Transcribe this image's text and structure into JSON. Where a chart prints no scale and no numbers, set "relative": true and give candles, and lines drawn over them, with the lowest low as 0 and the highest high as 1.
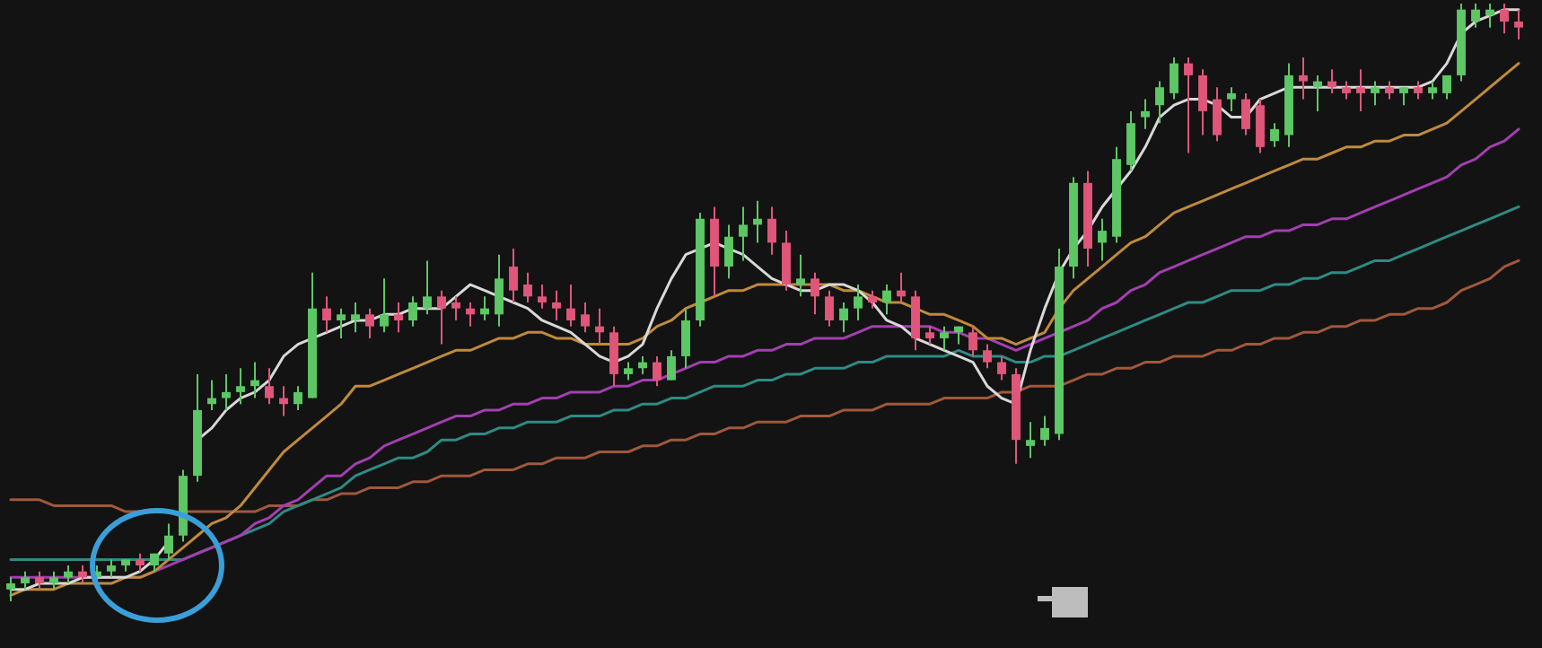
{
  "chart_data": {
    "type": "candlestick",
    "relative": true,
    "tick_labels": false,
    "legend": false,
    "categories": [
      null,
      null,
      null,
      null,
      null,
      null,
      null,
      null,
      null,
      null,
      null,
      null,
      null,
      null,
      null,
      null,
      null,
      null,
      null,
      null,
      null,
      null,
      null,
      null,
      null,
      null,
      null,
      null,
      null,
      null,
      null,
      null,
      null,
      null,
      null,
      null,
      null,
      null,
      null,
      null,
      null,
      null,
      null,
      null,
      null,
      null,
      null,
      null,
      null,
      null,
      null,
      null,
      null,
      null,
      null,
      null,
      null,
      null,
      null,
      null,
      null,
      null,
      null,
      null,
      null,
      null,
      null,
      null,
      null,
      null,
      null,
      null,
      null,
      null,
      null,
      null,
      null,
      null,
      null,
      null,
      null,
      null,
      null,
      null,
      null,
      null,
      null,
      null,
      null,
      null,
      null,
      null,
      null,
      null,
      null,
      null,
      null,
      null,
      null,
      null,
      null,
      null,
      null,
      null,
      null,
      null
    ],
    "ohlc": [
      [
        0.02,
        0.04,
        0.0,
        0.03
      ],
      [
        0.03,
        0.05,
        0.02,
        0.04
      ],
      [
        0.04,
        0.05,
        0.02,
        0.03
      ],
      [
        0.03,
        0.05,
        0.02,
        0.04
      ],
      [
        0.04,
        0.06,
        0.03,
        0.05
      ],
      [
        0.05,
        0.06,
        0.03,
        0.04
      ],
      [
        0.04,
        0.06,
        0.03,
        0.05
      ],
      [
        0.05,
        0.07,
        0.04,
        0.06
      ],
      [
        0.06,
        0.07,
        0.05,
        0.07
      ],
      [
        0.07,
        0.08,
        0.05,
        0.06
      ],
      [
        0.06,
        0.08,
        0.05,
        0.08
      ],
      [
        0.08,
        0.13,
        0.07,
        0.11
      ],
      [
        0.11,
        0.22,
        0.1,
        0.21
      ],
      [
        0.21,
        0.38,
        0.2,
        0.32
      ],
      [
        0.33,
        0.37,
        0.32,
        0.34
      ],
      [
        0.34,
        0.38,
        0.32,
        0.35
      ],
      [
        0.35,
        0.39,
        0.33,
        0.36
      ],
      [
        0.36,
        0.4,
        0.34,
        0.37
      ],
      [
        0.36,
        0.39,
        0.33,
        0.34
      ],
      [
        0.34,
        0.36,
        0.31,
        0.33
      ],
      [
        0.33,
        0.36,
        0.32,
        0.35
      ],
      [
        0.34,
        0.55,
        0.34,
        0.49
      ],
      [
        0.49,
        0.51,
        0.45,
        0.47
      ],
      [
        0.47,
        0.49,
        0.44,
        0.48
      ],
      [
        0.47,
        0.5,
        0.45,
        0.48
      ],
      [
        0.48,
        0.49,
        0.44,
        0.46
      ],
      [
        0.46,
        0.54,
        0.45,
        0.48
      ],
      [
        0.48,
        0.5,
        0.45,
        0.47
      ],
      [
        0.47,
        0.51,
        0.46,
        0.5
      ],
      [
        0.49,
        0.57,
        0.48,
        0.51
      ],
      [
        0.51,
        0.52,
        0.43,
        0.49
      ],
      [
        0.5,
        0.51,
        0.47,
        0.49
      ],
      [
        0.49,
        0.5,
        0.46,
        0.48
      ],
      [
        0.48,
        0.51,
        0.47,
        0.49
      ],
      [
        0.48,
        0.58,
        0.46,
        0.54
      ],
      [
        0.56,
        0.59,
        0.5,
        0.52
      ],
      [
        0.53,
        0.55,
        0.5,
        0.51
      ],
      [
        0.51,
        0.53,
        0.49,
        0.5
      ],
      [
        0.5,
        0.52,
        0.47,
        0.49
      ],
      [
        0.49,
        0.53,
        0.46,
        0.47
      ],
      [
        0.48,
        0.5,
        0.45,
        0.46
      ],
      [
        0.46,
        0.49,
        0.43,
        0.45
      ],
      [
        0.45,
        0.46,
        0.36,
        0.38
      ],
      [
        0.38,
        0.4,
        0.37,
        0.39
      ],
      [
        0.39,
        0.41,
        0.38,
        0.4
      ],
      [
        0.4,
        0.41,
        0.36,
        0.37
      ],
      [
        0.37,
        0.42,
        0.37,
        0.41
      ],
      [
        0.41,
        0.49,
        0.39,
        0.47
      ],
      [
        0.47,
        0.65,
        0.46,
        0.64
      ],
      [
        0.64,
        0.66,
        0.51,
        0.56
      ],
      [
        0.56,
        0.63,
        0.54,
        0.61
      ],
      [
        0.61,
        0.66,
        0.57,
        0.63
      ],
      [
        0.63,
        0.67,
        0.6,
        0.64
      ],
      [
        0.64,
        0.66,
        0.58,
        0.6
      ],
      [
        0.6,
        0.62,
        0.52,
        0.53
      ],
      [
        0.53,
        0.58,
        0.51,
        0.54
      ],
      [
        0.54,
        0.55,
        0.48,
        0.51
      ],
      [
        0.51,
        0.52,
        0.46,
        0.47
      ],
      [
        0.47,
        0.5,
        0.45,
        0.49
      ],
      [
        0.49,
        0.53,
        0.47,
        0.51
      ],
      [
        0.51,
        0.52,
        0.49,
        0.5
      ],
      [
        0.5,
        0.53,
        0.48,
        0.52
      ],
      [
        0.52,
        0.55,
        0.5,
        0.51
      ],
      [
        0.51,
        0.52,
        0.42,
        0.44
      ],
      [
        0.45,
        0.46,
        0.43,
        0.44
      ],
      [
        0.44,
        0.46,
        0.42,
        0.45
      ],
      [
        0.45,
        0.46,
        0.43,
        0.46
      ],
      [
        0.45,
        0.46,
        0.41,
        0.42
      ],
      [
        0.42,
        0.43,
        0.39,
        0.4
      ],
      [
        0.4,
        0.41,
        0.37,
        0.38
      ],
      [
        0.38,
        0.39,
        0.23,
        0.27
      ],
      [
        0.26,
        0.3,
        0.24,
        0.27
      ],
      [
        0.27,
        0.31,
        0.26,
        0.29
      ],
      [
        0.28,
        0.59,
        0.27,
        0.56
      ],
      [
        0.56,
        0.71,
        0.54,
        0.7
      ],
      [
        0.7,
        0.72,
        0.56,
        0.59
      ],
      [
        0.6,
        0.64,
        0.57,
        0.62
      ],
      [
        0.61,
        0.76,
        0.6,
        0.74
      ],
      [
        0.73,
        0.82,
        0.72,
        0.8
      ],
      [
        0.81,
        0.84,
        0.79,
        0.82
      ],
      [
        0.83,
        0.87,
        0.8,
        0.86
      ],
      [
        0.85,
        0.91,
        0.84,
        0.9
      ],
      [
        0.9,
        0.91,
        0.75,
        0.88
      ],
      [
        0.88,
        0.89,
        0.78,
        0.82
      ],
      [
        0.84,
        0.86,
        0.77,
        0.78
      ],
      [
        0.84,
        0.86,
        0.82,
        0.85
      ],
      [
        0.84,
        0.85,
        0.78,
        0.79
      ],
      [
        0.83,
        0.84,
        0.75,
        0.76
      ],
      [
        0.77,
        0.8,
        0.76,
        0.79
      ],
      [
        0.78,
        0.9,
        0.76,
        0.88
      ],
      [
        0.88,
        0.91,
        0.84,
        0.87
      ],
      [
        0.86,
        0.88,
        0.82,
        0.87
      ],
      [
        0.87,
        0.89,
        0.85,
        0.86
      ],
      [
        0.86,
        0.87,
        0.84,
        0.85
      ],
      [
        0.86,
        0.89,
        0.82,
        0.85
      ],
      [
        0.85,
        0.87,
        0.83,
        0.86
      ],
      [
        0.86,
        0.87,
        0.84,
        0.85
      ],
      [
        0.85,
        0.86,
        0.83,
        0.86
      ],
      [
        0.86,
        0.87,
        0.84,
        0.85
      ],
      [
        0.85,
        0.87,
        0.84,
        0.86
      ],
      [
        0.85,
        0.88,
        0.84,
        0.88
      ],
      [
        0.88,
        1.0,
        0.87,
        0.99
      ],
      [
        0.97,
        1.0,
        0.96,
        0.99
      ],
      [
        0.98,
        1.0,
        0.96,
        0.99
      ],
      [
        0.99,
        1.0,
        0.95,
        0.97
      ],
      [
        0.97,
        0.99,
        0.94,
        0.96
      ]
    ],
    "series": [
      {
        "type": "line",
        "color": "#d8d8d8",
        "values": [
          0.02,
          0.02,
          0.03,
          0.03,
          0.03,
          0.04,
          0.04,
          0.04,
          0.04,
          0.05,
          0.07,
          0.1,
          null,
          0.27,
          0.29,
          0.32,
          0.34,
          0.35,
          0.37,
          0.41,
          0.43,
          0.44,
          0.45,
          0.46,
          0.47,
          0.47,
          0.48,
          0.48,
          0.49,
          0.49,
          0.49,
          0.51,
          0.53,
          0.52,
          0.51,
          0.5,
          0.49,
          0.47,
          0.46,
          0.45,
          0.43,
          0.41,
          0.4,
          0.41,
          0.43,
          0.49,
          0.54,
          0.58,
          0.59,
          0.6,
          0.59,
          0.58,
          0.56,
          0.54,
          0.53,
          0.52,
          0.52,
          0.53,
          0.53,
          0.52,
          0.5,
          0.47,
          0.46,
          0.44,
          0.43,
          0.42,
          0.41,
          0.4,
          0.36,
          0.34,
          0.33,
          0.42,
          0.49,
          0.55,
          0.59,
          0.62,
          0.66,
          0.69,
          0.72,
          0.76,
          0.81,
          0.83,
          0.84,
          0.84,
          0.83,
          0.81,
          0.81,
          0.84,
          0.85,
          0.86,
          0.86,
          0.86,
          0.86,
          0.86,
          0.86,
          0.86,
          0.86,
          0.86,
          0.86,
          0.87,
          0.9,
          0.95,
          0.97,
          0.98,
          0.99,
          0.99
        ]
      },
      {
        "type": "line",
        "color": "#c08a3a",
        "values": [
          0.01,
          0.02,
          0.02,
          0.02,
          0.03,
          0.03,
          0.03,
          0.03,
          0.04,
          0.04,
          0.05,
          0.07,
          0.09,
          0.11,
          0.13,
          0.14,
          0.16,
          0.19,
          0.22,
          0.25,
          0.27,
          0.29,
          0.31,
          0.33,
          0.36,
          0.36,
          0.37,
          0.38,
          0.39,
          0.4,
          0.41,
          0.42,
          0.42,
          0.43,
          0.44,
          0.44,
          0.45,
          0.45,
          0.44,
          0.44,
          0.43,
          0.43,
          0.43,
          0.43,
          0.44,
          0.46,
          0.47,
          0.49,
          0.5,
          0.51,
          0.52,
          0.52,
          0.53,
          0.53,
          0.53,
          0.53,
          0.53,
          0.53,
          0.52,
          0.52,
          0.51,
          0.5,
          0.5,
          0.49,
          0.48,
          0.48,
          0.47,
          0.46,
          0.44,
          0.44,
          0.43,
          0.44,
          0.45,
          0.49,
          0.52,
          0.54,
          0.56,
          0.58,
          0.6,
          0.61,
          0.63,
          0.65,
          0.66,
          0.67,
          0.68,
          0.69,
          0.7,
          0.71,
          0.72,
          0.73,
          0.74,
          0.74,
          0.75,
          0.76,
          0.76,
          0.77,
          0.77,
          0.78,
          0.78,
          0.79,
          0.8,
          0.82,
          0.84,
          0.86,
          0.88,
          0.9
        ]
      },
      {
        "type": "line",
        "color": "#a23fb0",
        "values": [
          0.04,
          0.04,
          0.04,
          0.04,
          0.04,
          0.04,
          0.04,
          0.04,
          0.04,
          0.04,
          0.05,
          0.06,
          0.07,
          0.08,
          0.09,
          0.1,
          0.11,
          0.13,
          0.14,
          0.16,
          0.17,
          0.19,
          0.21,
          0.21,
          0.23,
          0.24,
          0.26,
          0.27,
          0.28,
          0.29,
          0.3,
          0.31,
          0.31,
          0.32,
          0.32,
          0.33,
          0.33,
          0.34,
          0.34,
          0.35,
          0.35,
          0.35,
          0.36,
          0.36,
          0.37,
          0.37,
          0.38,
          0.39,
          0.4,
          0.4,
          0.41,
          0.41,
          0.42,
          0.42,
          0.43,
          0.43,
          0.44,
          0.44,
          0.44,
          0.45,
          0.46,
          0.46,
          0.46,
          0.46,
          0.46,
          0.45,
          0.45,
          0.44,
          0.44,
          0.43,
          0.42,
          0.43,
          0.44,
          0.45,
          0.46,
          0.47,
          0.49,
          0.5,
          0.52,
          0.53,
          0.55,
          0.56,
          0.57,
          0.58,
          0.59,
          0.6,
          0.61,
          0.61,
          0.62,
          0.62,
          0.63,
          0.63,
          0.64,
          0.64,
          0.65,
          0.66,
          0.67,
          0.68,
          0.69,
          0.7,
          0.71,
          0.73,
          0.74,
          0.76,
          0.77,
          0.79
        ]
      },
      {
        "type": "line",
        "color": "#2e8b84",
        "values": [
          0.07,
          0.07,
          0.07,
          0.07,
          0.07,
          0.07,
          0.07,
          0.07,
          0.07,
          0.07,
          0.07,
          0.07,
          0.07,
          0.08,
          0.09,
          0.1,
          0.11,
          0.12,
          0.13,
          0.15,
          0.16,
          0.17,
          0.18,
          0.19,
          0.21,
          0.22,
          0.23,
          0.24,
          0.24,
          0.25,
          0.27,
          0.27,
          0.28,
          0.28,
          0.29,
          0.29,
          0.3,
          0.3,
          0.3,
          0.31,
          0.31,
          0.31,
          0.32,
          0.32,
          0.33,
          0.33,
          0.34,
          0.34,
          0.35,
          0.36,
          0.36,
          0.36,
          0.37,
          0.37,
          0.38,
          0.38,
          0.39,
          0.39,
          0.39,
          0.4,
          0.4,
          0.41,
          0.41,
          0.41,
          0.41,
          0.41,
          0.42,
          0.41,
          0.41,
          0.41,
          0.4,
          0.4,
          0.41,
          0.41,
          0.42,
          0.43,
          0.44,
          0.45,
          0.46,
          0.47,
          0.48,
          0.49,
          0.5,
          0.5,
          0.51,
          0.52,
          0.52,
          0.52,
          0.53,
          0.53,
          0.54,
          0.54,
          0.55,
          0.55,
          0.56,
          0.57,
          0.57,
          0.58,
          0.59,
          0.6,
          0.61,
          0.62,
          0.63,
          0.64,
          0.65,
          0.66
        ]
      },
      {
        "type": "line",
        "color": "#a0583c",
        "values": [
          0.17,
          0.17,
          0.17,
          0.16,
          0.16,
          0.16,
          0.16,
          0.16,
          0.15,
          0.15,
          null,
          null,
          0.15,
          0.15,
          0.15,
          0.15,
          0.15,
          0.15,
          0.16,
          0.16,
          0.16,
          0.17,
          0.17,
          0.18,
          0.18,
          0.19,
          0.19,
          0.19,
          0.2,
          0.2,
          0.21,
          0.21,
          0.21,
          0.22,
          0.22,
          0.22,
          0.23,
          0.23,
          0.24,
          0.24,
          0.24,
          0.25,
          0.25,
          0.25,
          0.26,
          0.26,
          0.27,
          0.27,
          0.28,
          0.28,
          0.29,
          0.29,
          0.3,
          0.3,
          0.3,
          0.31,
          0.31,
          0.31,
          0.32,
          0.32,
          0.32,
          0.33,
          0.33,
          0.33,
          0.33,
          0.34,
          0.34,
          0.34,
          0.34,
          0.35,
          0.35,
          0.36,
          0.36,
          0.36,
          0.37,
          0.38,
          0.38,
          0.39,
          0.39,
          0.4,
          0.4,
          0.41,
          0.41,
          0.41,
          0.42,
          0.42,
          0.43,
          0.43,
          0.44,
          0.44,
          0.45,
          0.45,
          0.46,
          0.46,
          0.47,
          0.47,
          0.48,
          0.48,
          0.49,
          0.49,
          0.5,
          0.52,
          0.53,
          0.54,
          0.56,
          0.57
        ]
      }
    ]
  }
}
